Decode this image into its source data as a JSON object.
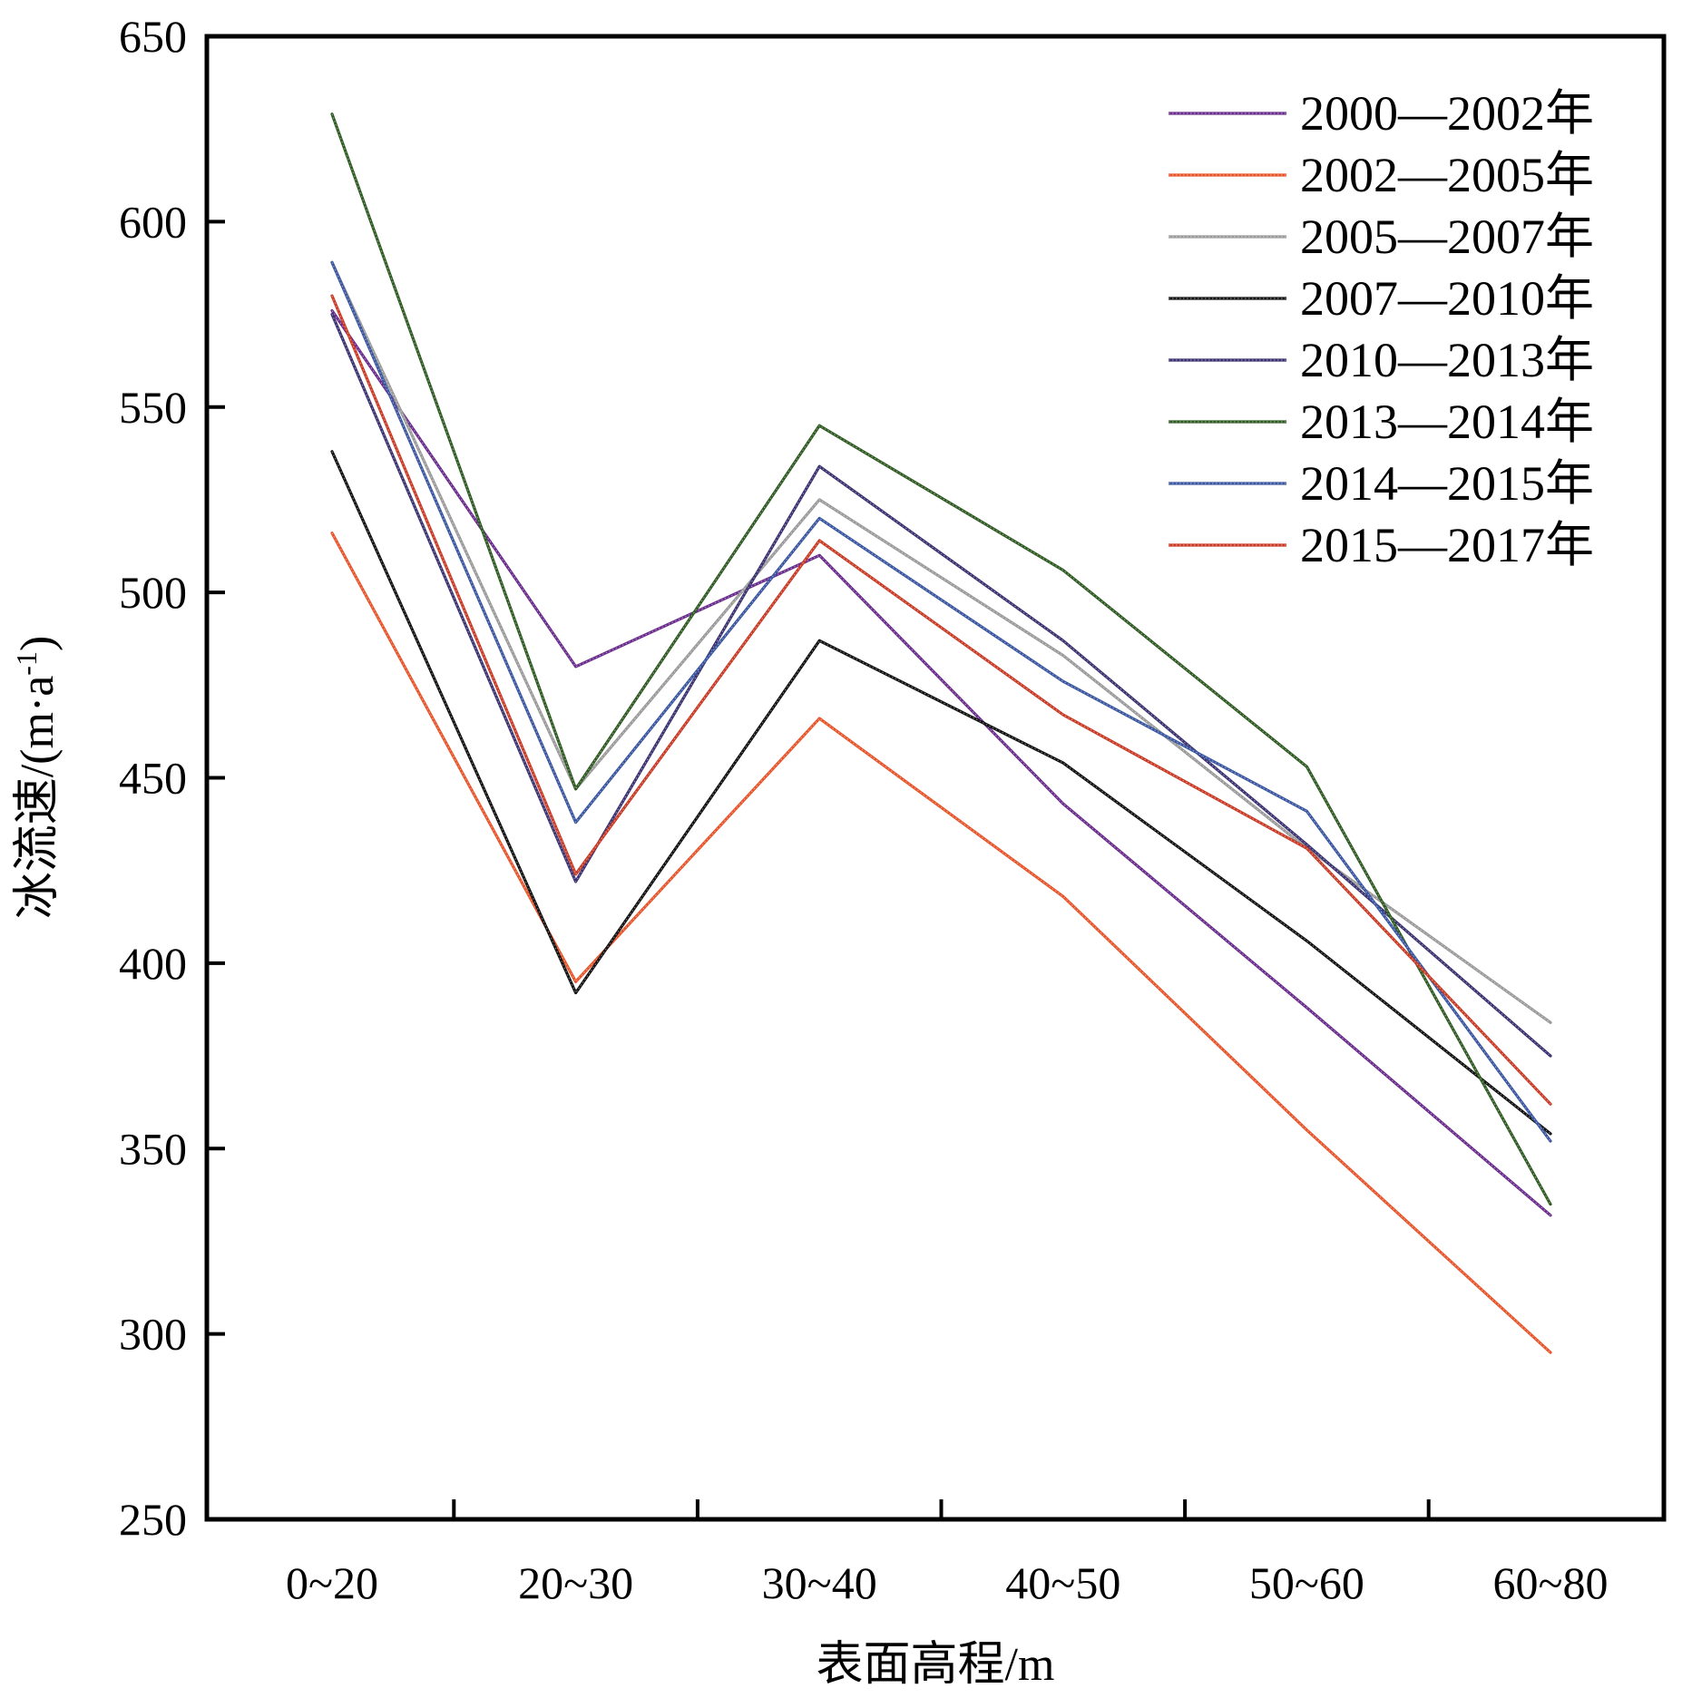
{
  "chart_data": {
    "type": "line",
    "xlabel": "表面高程/m",
    "ylabel": "冰流速/(m·a⁻¹)",
    "ylabel_main": "冰流速/(m·a",
    "ylabel_sup": "-1",
    "ylabel_tail": ")",
    "categories": [
      "0~20",
      "20~30",
      "30~40",
      "40~50",
      "50~60",
      "60~80"
    ],
    "ylim": [
      250,
      650
    ],
    "yticks": [
      "650",
      "600",
      "550",
      "500",
      "450",
      "400",
      "350",
      "300",
      "250"
    ],
    "grid": false,
    "legend_position": "top-right",
    "series": [
      {
        "name": "2000—2002年",
        "color": "#6a2c8c",
        "values": [
          576,
          480,
          510,
          443,
          388,
          332
        ]
      },
      {
        "name": "2002—2005年",
        "color": "#e8542a",
        "values": [
          516,
          395,
          466,
          418,
          355,
          295
        ]
      },
      {
        "name": "2005—2007年",
        "color": "#9a9a9a",
        "values": [
          589,
          447,
          525,
          483,
          431,
          384
        ]
      },
      {
        "name": "2007—2010年",
        "color": "#111111",
        "values": [
          538,
          392,
          487,
          454,
          406,
          354
        ]
      },
      {
        "name": "2010—2013年",
        "color": "#3a3270",
        "values": [
          575,
          422,
          534,
          487,
          432,
          375
        ]
      },
      {
        "name": "2013—2014年",
        "color": "#2e5a22",
        "values": [
          629,
          447,
          545,
          506,
          453,
          335
        ]
      },
      {
        "name": "2014—2015年",
        "color": "#3a56a0",
        "values": [
          589,
          438,
          520,
          476,
          441,
          352
        ]
      },
      {
        "name": "2015—2017年",
        "color": "#c93a25",
        "values": [
          580,
          424,
          514,
          467,
          431,
          362
        ]
      }
    ]
  }
}
